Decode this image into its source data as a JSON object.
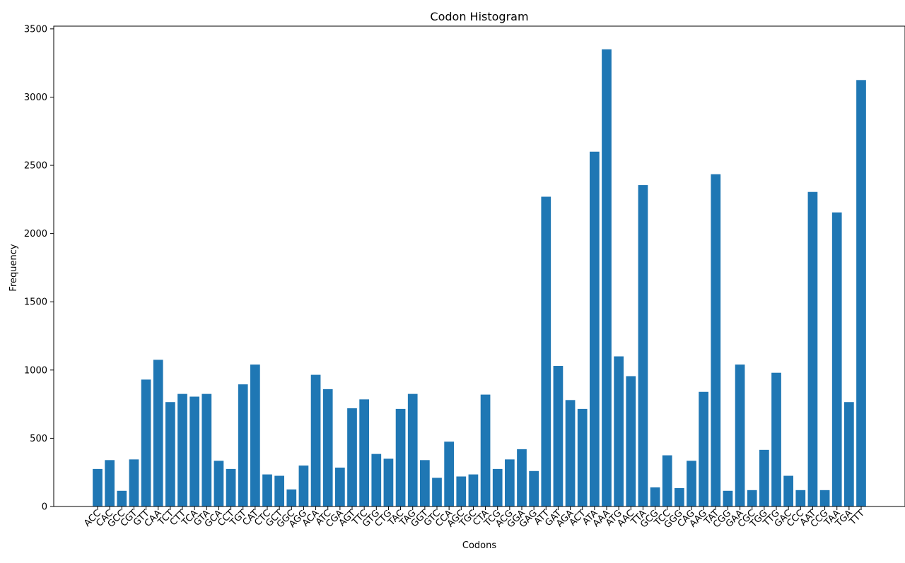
{
  "chart_data": {
    "type": "bar",
    "title": "Codon Histogram",
    "xlabel": "Codons",
    "ylabel": "Frequency",
    "ylim": [
      0,
      3520
    ],
    "yticks": [
      0,
      500,
      1000,
      1500,
      2000,
      2500,
      3000,
      3500
    ],
    "bar_color": "#1f77b4",
    "categories": [
      "ACC",
      "CAC",
      "GCC",
      "CGT",
      "GTT",
      "CAA",
      "TCT",
      "CTT",
      "TCA",
      "GTA",
      "GCA",
      "CCT",
      "TGT",
      "CAT",
      "CTC",
      "GCT",
      "GGC",
      "AGG",
      "ACA",
      "ATC",
      "CGA",
      "AGT",
      "TTC",
      "GTG",
      "CTG",
      "TAC",
      "TAG",
      "GGT",
      "GTC",
      "CCA",
      "AGC",
      "TGC",
      "CTA",
      "TCG",
      "ACG",
      "GGA",
      "GAG",
      "ATT",
      "GAT",
      "AGA",
      "ACT",
      "ATA",
      "AAA",
      "ATG",
      "AAC",
      "TTA",
      "GCG",
      "TCC",
      "GGG",
      "CAG",
      "AAG",
      "TAT",
      "CGG",
      "GAA",
      "CGC",
      "TGG",
      "TTG",
      "GAC",
      "CCC",
      "AAT",
      "CCG",
      "TAA",
      "TGA",
      "TTT"
    ],
    "values": [
      275,
      340,
      115,
      345,
      930,
      1075,
      765,
      825,
      805,
      825,
      335,
      275,
      895,
      1040,
      235,
      225,
      125,
      300,
      965,
      860,
      285,
      720,
      785,
      385,
      350,
      715,
      825,
      340,
      210,
      475,
      220,
      235,
      820,
      275,
      345,
      420,
      260,
      2270,
      1030,
      780,
      715,
      2600,
      3350,
      1100,
      955,
      2355,
      140,
      375,
      135,
      335,
      840,
      2435,
      115,
      1040,
      120,
      415,
      980,
      225,
      120,
      2305,
      120,
      2155,
      765,
      3125
    ]
  }
}
